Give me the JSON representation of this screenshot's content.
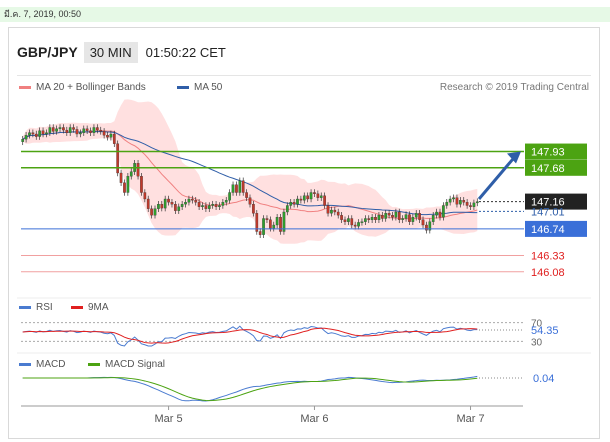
{
  "timestamp": "มี.ค. 7, 2019, 00:50",
  "header": {
    "pair": "GBP/JPY",
    "timeframe": "30 MIN",
    "time": "01:50:22 CET"
  },
  "legend": {
    "ma20": "MA 20 + Bollinger Bands",
    "ma50": "MA 50",
    "credit": "Research © 2019 Trading Central",
    "rsi": "RSI",
    "rsi_ma": "9MA",
    "macd": "MACD",
    "macd_signal": "MACD Signal"
  },
  "colors": {
    "resistance": "#4ca312",
    "pivot": "#3a6fd8",
    "support": "#e02020",
    "bollinger": "#ffdada",
    "ma50": "#2f5ea8",
    "candle_up": "#2e9e2e",
    "candle_down": "#c0392b",
    "arrow": "#2f5ea8"
  },
  "chart_data": [
    {
      "type": "candlestick",
      "x_labels": [
        "Mar 5",
        "Mar 6",
        "Mar 7"
      ],
      "ylim": [
        145.8,
        148.6
      ],
      "levels": [
        {
          "label": "147.93",
          "value": 147.93,
          "kind": "resistance"
        },
        {
          "label": "147.68",
          "value": 147.68,
          "kind": "resistance"
        },
        {
          "label": "147.16",
          "value": 147.16,
          "kind": "last"
        },
        {
          "label": "147.01",
          "value": 147.01,
          "kind": "ma"
        },
        {
          "label": "146.74",
          "value": 146.74,
          "kind": "pivot"
        },
        {
          "label": "146.33",
          "value": 146.33,
          "kind": "support"
        },
        {
          "label": "146.08",
          "value": 146.08,
          "kind": "support"
        }
      ],
      "close": [
        148.12,
        148.18,
        148.22,
        148.2,
        148.16,
        148.25,
        148.2,
        148.22,
        148.3,
        148.24,
        148.28,
        148.3,
        148.26,
        148.22,
        148.3,
        148.27,
        148.2,
        148.22,
        148.28,
        148.25,
        148.22,
        148.3,
        148.26,
        148.24,
        148.18,
        148.15,
        148.2,
        148.05,
        147.6,
        147.45,
        147.3,
        147.55,
        147.62,
        147.75,
        147.55,
        147.3,
        147.2,
        147.05,
        146.95,
        147.05,
        147.12,
        147.06,
        147.2,
        147.15,
        147.12,
        147.02,
        147.08,
        147.12,
        147.15,
        147.2,
        147.18,
        147.15,
        147.08,
        147.1,
        147.05,
        147.1,
        147.12,
        147.08,
        147.1,
        147.15,
        147.18,
        147.3,
        147.42,
        147.3,
        147.48,
        147.3,
        147.22,
        147.12,
        146.98,
        146.7,
        146.65,
        146.9,
        146.88,
        146.75,
        146.8,
        146.92,
        146.7,
        147.0,
        147.1,
        147.15,
        147.12,
        147.2,
        147.18,
        147.25,
        147.2,
        147.3,
        147.28,
        147.22,
        147.25,
        147.1,
        146.98,
        147.03,
        147.0,
        146.95,
        146.88,
        146.85,
        146.9,
        146.8,
        146.78,
        146.84,
        146.85,
        146.9,
        146.88,
        146.92,
        146.88,
        146.95,
        146.9,
        146.98,
        146.95,
        146.92,
        147.0,
        146.88,
        146.9,
        146.96,
        146.85,
        146.92,
        146.98,
        146.88,
        146.8,
        146.72,
        146.85,
        146.95,
        147.0,
        146.92,
        147.1,
        147.15,
        147.2,
        147.22,
        147.12,
        147.18,
        147.15,
        147.1,
        147.08,
        147.14,
        147.16
      ],
      "rsi": {
        "current": 54.35,
        "levels": [
          70,
          30
        ],
        "ylim": [
          20,
          80
        ]
      },
      "macd": {
        "current": 0.04
      }
    }
  ]
}
